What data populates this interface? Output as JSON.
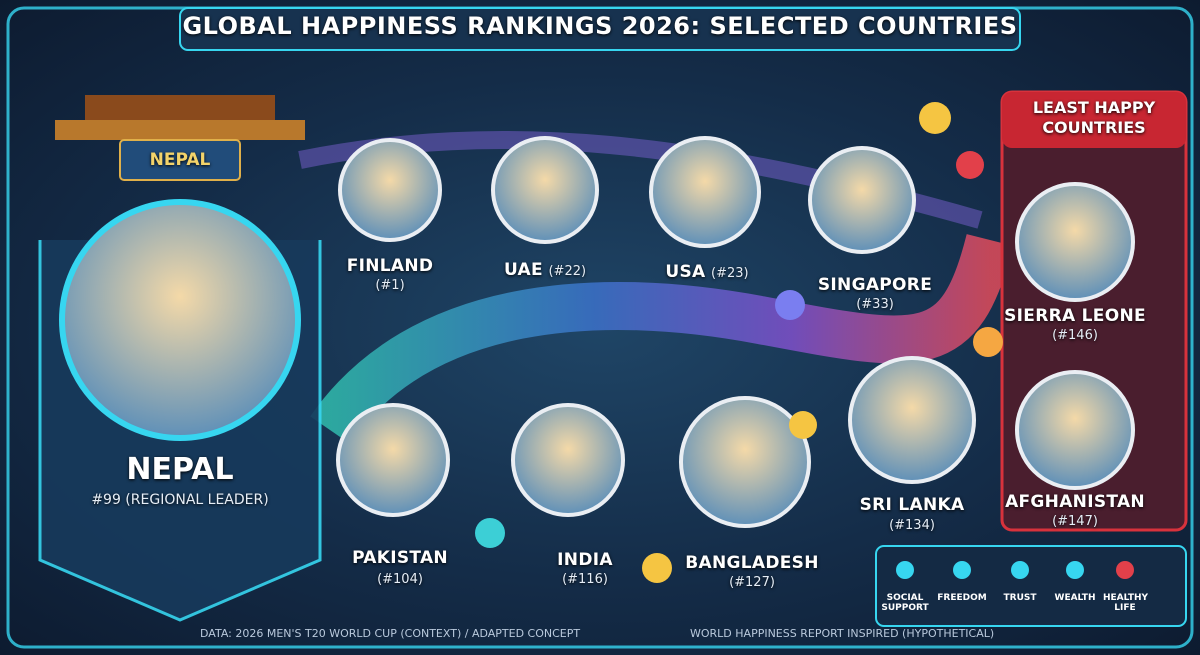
{
  "header": {
    "title": "GLOBAL HAPPINESS RANKINGS 2026: SELECTED COUNTRIES"
  },
  "featured": {
    "banner": "NEPAL",
    "name": "NEPAL",
    "rank": "#99 (REGIONAL LEADER)"
  },
  "countries": [
    {
      "name": "FINLAND",
      "rank": "(#1)"
    },
    {
      "name": "UAE",
      "rank": "(#22)"
    },
    {
      "name": "USA",
      "rank": "(#23)"
    },
    {
      "name": "SINGAPORE",
      "rank": "(#33)"
    },
    {
      "name": "PAKISTAN",
      "rank": "(#104)"
    },
    {
      "name": "INDIA",
      "rank": "(#116)"
    },
    {
      "name": "BANGLADESH",
      "rank": "(#127)"
    },
    {
      "name": "SRI LANKA",
      "rank": "(#134)"
    }
  ],
  "least_happy": {
    "title": "LEAST HAPPY COUNTRIES",
    "countries": [
      {
        "name": "SIERRA LEONE",
        "rank": "(#146)"
      },
      {
        "name": "AFGHANISTAN",
        "rank": "(#147)"
      }
    ]
  },
  "legend": {
    "items": [
      "SOCIAL SUPPORT",
      "FREEDOM",
      "TRUST",
      "WEALTH",
      "HEALTHY LIFE"
    ]
  },
  "footer": {
    "left": "DATA: 2026 MEN'S T20 WORLD CUP (CONTEXT) / ADAPTED CONCEPT",
    "right": "WORLD HAPPINESS REPORT INSPIRED (HYPOTHETICAL)"
  }
}
